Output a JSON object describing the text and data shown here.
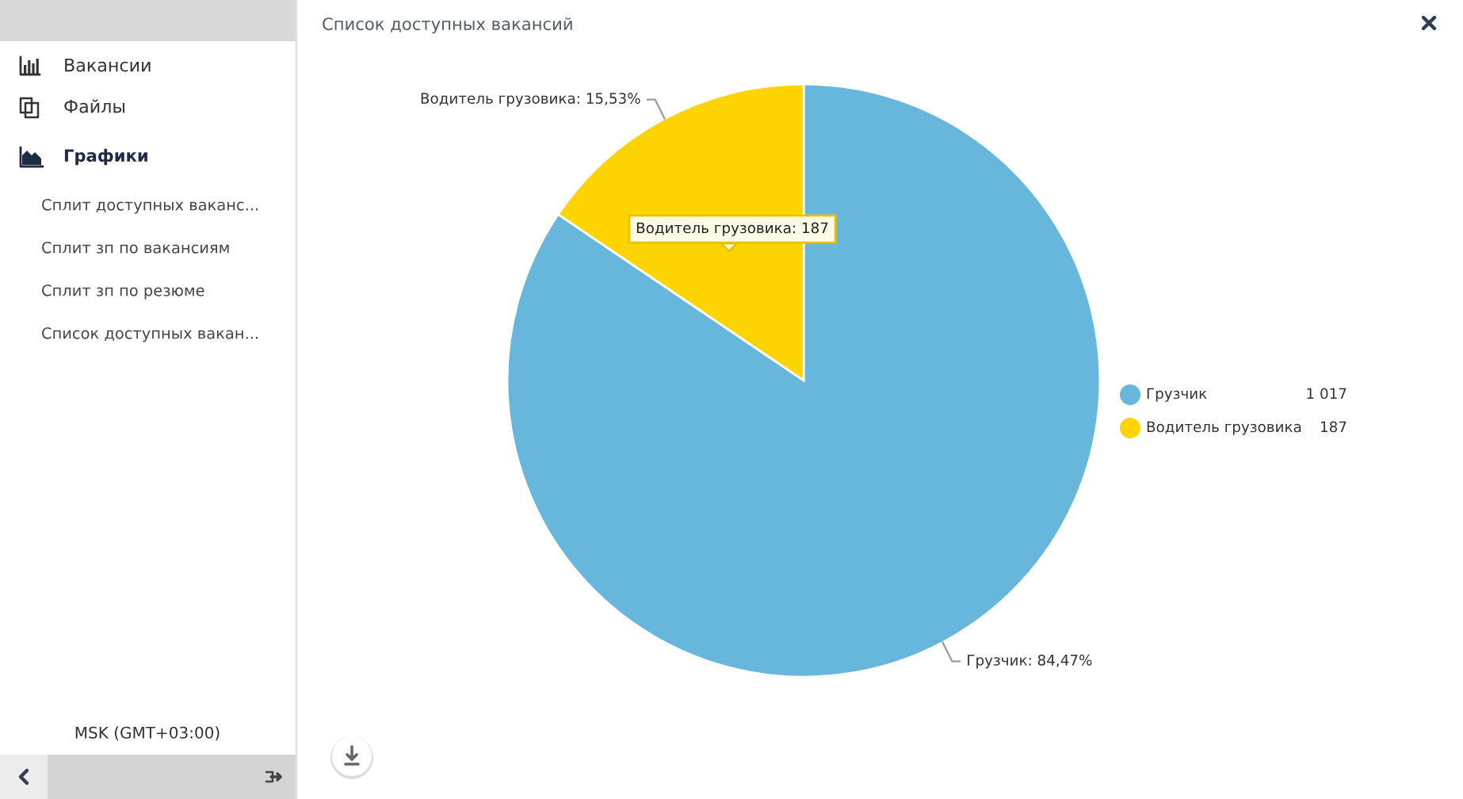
{
  "chart_data": {
    "type": "pie",
    "title": "Список доступных вакансий",
    "categories": [
      "Грузчик",
      "Водитель грузовика"
    ],
    "values": [
      1017,
      187
    ],
    "colors": [
      "#67b7dc",
      "#fdd400"
    ],
    "value_labels": [
      "1 017",
      "187"
    ],
    "legend": "right",
    "annotations": [
      "Вакансии",
      "Файлы",
      "Графики",
      "Сплит доступных ваканс...",
      "Сплит зп по вакансиям",
      "Сплит зп по резюме",
      "Список доступных вакан...",
      "MSK (GMT+03:00)",
      "Водитель грузовика: 187",
      "Грузчик: 84,47%",
      "Водитель грузовика: 15,53%"
    ]
  }
}
